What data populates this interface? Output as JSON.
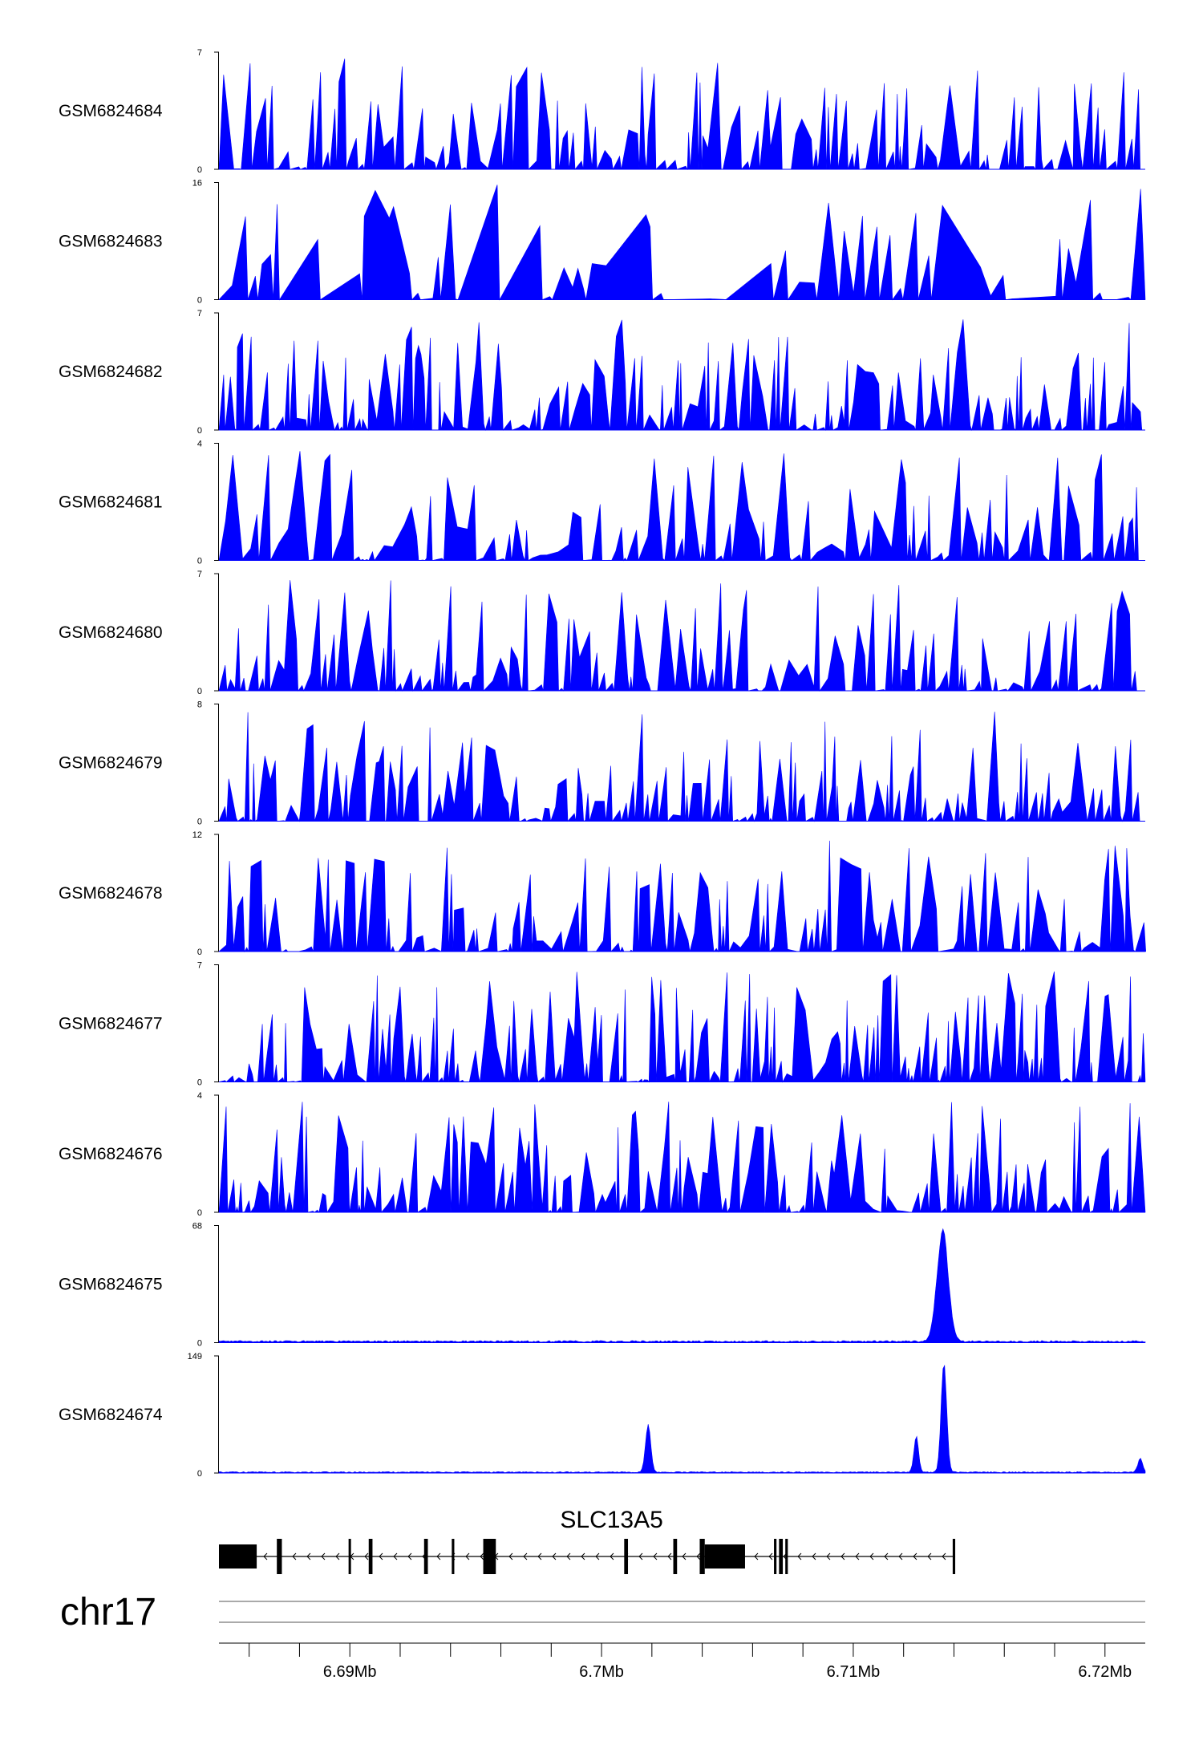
{
  "chart_data": {
    "type": "area",
    "chromosome": "chr17",
    "x_range": [
      6684800,
      6721600
    ],
    "x_ticks": [
      6690000,
      6700000,
      6710000,
      6720000
    ],
    "x_tick_labels": [
      "6.69Mb",
      "6.7Mb",
      "6.71Mb",
      "6.72Mb"
    ],
    "x_minor_tick_step": 2000,
    "tracks": [
      {
        "label": "GSM6824684",
        "ymin_label": "0",
        "ymax_label": "7",
        "ymax": 7,
        "pattern": "noisy",
        "density": 0.55,
        "baseline": 0.0,
        "peaks": []
      },
      {
        "label": "GSM6824683",
        "ymin_label": "0",
        "ymax_label": "16",
        "ymax": 16,
        "pattern": "sparse",
        "density": 0.25,
        "baseline": 0.0,
        "peaks": []
      },
      {
        "label": "GSM6824682",
        "ymin_label": "0",
        "ymax_label": "7",
        "ymax": 7,
        "pattern": "noisy",
        "density": 0.7,
        "baseline": 0.0,
        "peaks": []
      },
      {
        "label": "GSM6824681",
        "ymin_label": "0",
        "ymax_label": "4",
        "ymax": 4,
        "pattern": "noisy",
        "density": 0.45,
        "baseline": 0.0,
        "peaks": []
      },
      {
        "label": "GSM6824680",
        "ymin_label": "0",
        "ymax_label": "7",
        "ymax": 7,
        "pattern": "noisy",
        "density": 0.55,
        "baseline": 0.0,
        "peaks": []
      },
      {
        "label": "GSM6824679",
        "ymin_label": "0",
        "ymax_label": "8",
        "ymax": 8,
        "pattern": "noisy",
        "density": 0.65,
        "baseline": 0.0,
        "peaks": []
      },
      {
        "label": "GSM6824678",
        "ymin_label": "0",
        "ymax_label": "12",
        "ymax": 12,
        "pattern": "noisy",
        "density": 0.5,
        "baseline": 0.0,
        "peaks": []
      },
      {
        "label": "GSM6824677",
        "ymin_label": "0",
        "ymax_label": "7",
        "ymax": 7,
        "pattern": "noisy",
        "density": 0.8,
        "baseline": 0.0,
        "peaks": []
      },
      {
        "label": "GSM6824676",
        "ymin_label": "0",
        "ymax_label": "4",
        "ymax": 4,
        "pattern": "noisy",
        "density": 0.65,
        "baseline": 0.0,
        "peaks": []
      },
      {
        "label": "GSM6824675",
        "ymin_label": "0",
        "ymax_label": "68",
        "ymax": 68,
        "pattern": "smooth",
        "density": 0.0,
        "baseline": 1.0,
        "peaks": [
          {
            "x": 6713550,
            "height": 66,
            "width": 700
          }
        ]
      },
      {
        "label": "GSM6824674",
        "ymin_label": "0",
        "ymax_label": "149",
        "ymax": 149,
        "pattern": "smooth",
        "density": 0.0,
        "baseline": 1.5,
        "peaks": [
          {
            "x": 6701850,
            "height": 62,
            "width": 330
          },
          {
            "x": 6712500,
            "height": 48,
            "width": 280
          },
          {
            "x": 6713600,
            "height": 145,
            "width": 340
          },
          {
            "x": 6721400,
            "height": 18,
            "width": 300
          }
        ]
      }
    ],
    "gene": {
      "name": "SLC13A5",
      "strand": "-",
      "start": 6684800,
      "end": 6714050,
      "exons": [
        {
          "start": 6684800,
          "end": 6686300,
          "thick": true
        },
        {
          "start": 6687100,
          "end": 6687300,
          "thick": false
        },
        {
          "start": 6689950,
          "end": 6690000,
          "thick": false
        },
        {
          "start": 6690750,
          "end": 6690900,
          "thick": false
        },
        {
          "start": 6692950,
          "end": 6693100,
          "thick": false
        },
        {
          "start": 6694050,
          "end": 6694150,
          "thick": false
        },
        {
          "start": 6695300,
          "end": 6695800,
          "thick": false
        },
        {
          "start": 6700900,
          "end": 6701050,
          "thick": false
        },
        {
          "start": 6702850,
          "end": 6703000,
          "thick": false
        },
        {
          "start": 6703900,
          "end": 6704100,
          "thick": false
        },
        {
          "start": 6704100,
          "end": 6705700,
          "thick": true
        },
        {
          "start": 6706850,
          "end": 6706950,
          "thick": false
        },
        {
          "start": 6707050,
          "end": 6707200,
          "thick": false
        },
        {
          "start": 6707300,
          "end": 6707400,
          "thick": false
        },
        {
          "start": 6713950,
          "end": 6714050,
          "thick": false
        }
      ]
    },
    "fill_color": "#0000ff",
    "gene_color": "#000000"
  }
}
